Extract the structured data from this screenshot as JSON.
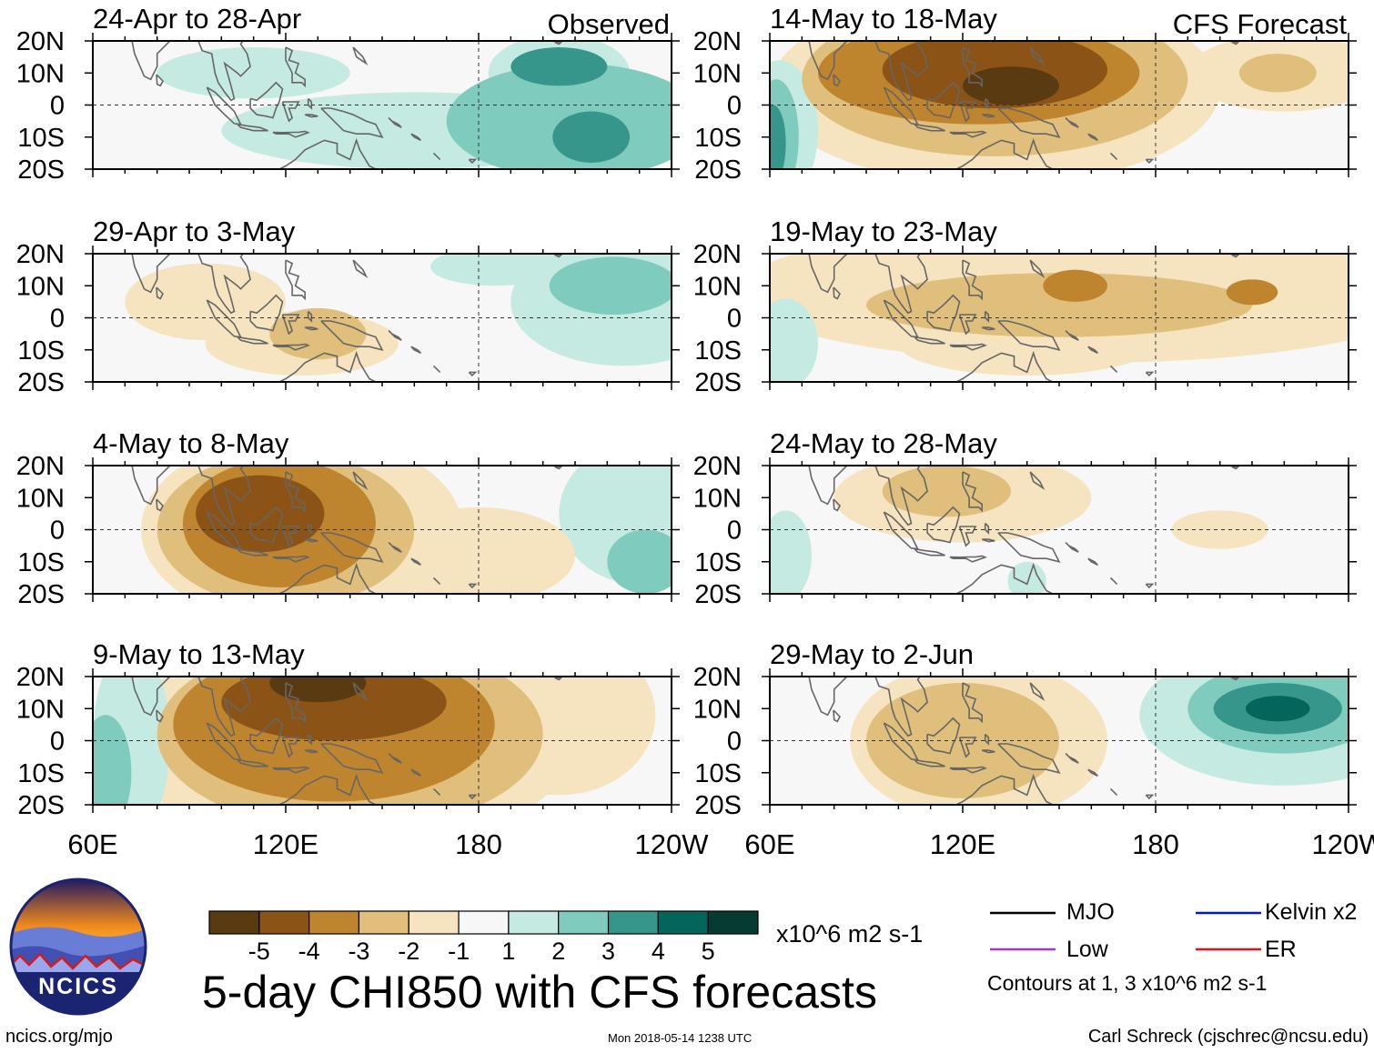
{
  "chart_data": {
    "type": "heatmap",
    "title": "5-day CHI850 with CFS forecasts",
    "units": "x10^6 m2 s-1",
    "x_ticks": [
      "60E",
      "120E",
      "180",
      "120W"
    ],
    "y_ticks": [
      "20N",
      "10N",
      "0",
      "10S",
      "20S"
    ],
    "xlim": [
      60,
      240
    ],
    "ylim": [
      -20,
      20
    ],
    "columns": [
      {
        "label": "Observed",
        "panels": [
          "24-Apr to 28-Apr",
          "29-Apr to 3-May",
          "4-May to 8-May",
          "9-May to 13-May"
        ]
      },
      {
        "label": "CFS Forecast",
        "panels": [
          "14-May to 18-May",
          "19-May to 23-May",
          "24-May to 28-May",
          "29-May to 2-Jun"
        ]
      }
    ],
    "colorbar": {
      "ticks": [
        "-5",
        "-4",
        "-3",
        "-2",
        "-1",
        "1",
        "2",
        "3",
        "4",
        "5"
      ],
      "colors": [
        "#5a3a10",
        "#8b5416",
        "#bf842e",
        "#dfbf7b",
        "#f5e4bf",
        "#f7f7f7",
        "#c5eae1",
        "#7fcbbd",
        "#37968b",
        "#03655c",
        "#063b32"
      ]
    },
    "legend": [
      {
        "label": "MJO",
        "color": "#000000"
      },
      {
        "label": "Kelvin x2",
        "color": "#0016d8"
      },
      {
        "label": "Low",
        "color": "#9b38d8"
      },
      {
        "label": "ER",
        "color": "#e3101a"
      }
    ],
    "contour_note": "Contours at 1, 3 x10^6 m2 s-1",
    "panel_fields": [
      [
        {
          "blobs": [
            [
              205,
              10,
              22,
              12,
              1
            ],
            [
              160,
              -8,
              60,
              12,
              1
            ],
            [
              210,
              -5,
              40,
              18,
              2
            ],
            [
              205,
              12,
              15,
              6,
              3
            ],
            [
              215,
              -10,
              12,
              8,
              3
            ],
            [
              110,
              10,
              30,
              8,
              1
            ]
          ]
        },
        {
          "blobs": [
            [
              125,
              -8,
              30,
              10,
              -1
            ],
            [
              95,
              5,
              25,
              12,
              -1
            ],
            [
              225,
              5,
              35,
              20,
              1
            ],
            [
              222,
              10,
              20,
              9,
              2
            ],
            [
              185,
              16,
              20,
              6,
              1
            ],
            [
              130,
              -5,
              15,
              8,
              -2
            ]
          ]
        },
        {
          "blobs": [
            [
              125,
              0,
              50,
              30,
              -1
            ],
            [
              120,
              0,
              40,
              24,
              -2
            ],
            [
              118,
              2,
              30,
              20,
              -3
            ],
            [
              112,
              5,
              20,
              12,
              -4
            ],
            [
              230,
              5,
              25,
              22,
              1
            ],
            [
              232,
              -10,
              12,
              10,
              2
            ],
            [
              180,
              -8,
              30,
              15,
              -1
            ]
          ]
        },
        {
          "blobs": [
            [
              140,
              0,
              70,
              35,
              -1
            ],
            [
              140,
              2,
              60,
              30,
              -2
            ],
            [
              135,
              5,
              50,
              24,
              -3
            ],
            [
              135,
              12,
              35,
              12,
              -4
            ],
            [
              130,
              18,
              15,
              6,
              -5
            ],
            [
              72,
              0,
              12,
              30,
              1
            ],
            [
              64,
              -10,
              8,
              18,
              2
            ],
            [
              205,
              8,
              30,
              25,
              -1
            ]
          ]
        }
      ],
      [
        {
          "blobs": [
            [
              130,
              5,
              70,
              30,
              -1
            ],
            [
              130,
              8,
              60,
              24,
              -2
            ],
            [
              125,
              10,
              50,
              16,
              -3
            ],
            [
              130,
              11,
              35,
              12,
              -4
            ],
            [
              135,
              6,
              15,
              6,
              -5
            ],
            [
              220,
              10,
              30,
              12,
              -1
            ],
            [
              218,
              10,
              12,
              6,
              -2
            ],
            [
              63,
              -8,
              12,
              22,
              1
            ],
            [
              62,
              -10,
              7,
              18,
              2
            ],
            [
              61,
              -12,
              4,
              12,
              3
            ]
          ]
        },
        {
          "blobs": [
            [
              160,
              8,
              110,
              22,
              -1
            ],
            [
              150,
              4,
              60,
              10,
              -2
            ],
            [
              140,
              -8,
              40,
              10,
              -1
            ],
            [
              155,
              10,
              10,
              5,
              -3
            ],
            [
              210,
              8,
              8,
              4,
              -3
            ],
            [
              65,
              -8,
              10,
              14,
              1
            ]
          ]
        },
        {
          "blobs": [
            [
              120,
              10,
              40,
              14,
              -1
            ],
            [
              115,
              12,
              20,
              8,
              -2
            ],
            [
              200,
              0,
              15,
              6,
              -1
            ],
            [
              65,
              -8,
              8,
              14,
              1
            ],
            [
              140,
              -16,
              6,
              6,
              1
            ]
          ]
        },
        {
          "blobs": [
            [
              125,
              0,
              40,
              25,
              -1
            ],
            [
              120,
              0,
              30,
              18,
              -2
            ],
            [
              220,
              8,
              45,
              22,
              1
            ],
            [
              220,
              10,
              30,
              14,
              2
            ],
            [
              218,
              10,
              20,
              8,
              3
            ],
            [
              218,
              10,
              10,
              4,
              4
            ]
          ]
        }
      ]
    ]
  },
  "footer": {
    "left": "ncics.org/mjo",
    "center": "Mon 2018-05-14 1238 UTC",
    "right": "Carl Schreck (cjschrec@ncsu.edu)"
  },
  "logo": {
    "text": "NCICS"
  }
}
